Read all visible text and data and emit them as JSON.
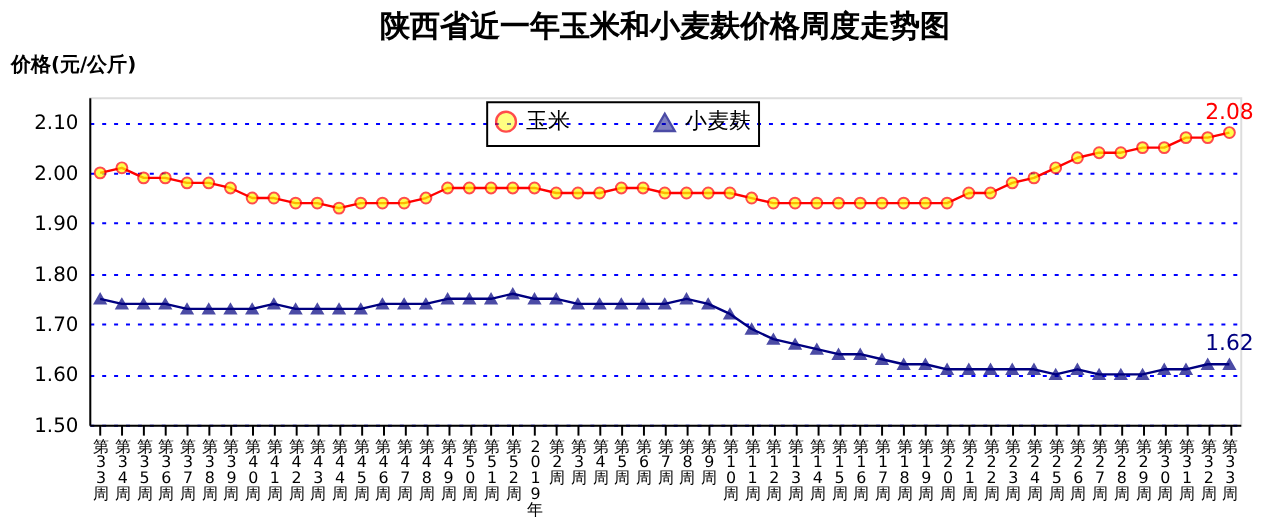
{
  "chart_data": {
    "type": "line",
    "title": "陕西省近一年玉米和小麦麸价格周度走势图",
    "ylabel": "价格(元/公斤)",
    "categories": [
      "第33周",
      "第34周",
      "第35周",
      "第36周",
      "第37周",
      "第38周",
      "第39周",
      "第40周",
      "第41周",
      "第42周",
      "第43周",
      "第44周",
      "第45周",
      "第46周",
      "第47周",
      "第48周",
      "第49周",
      "第50周",
      "第51周",
      "第52周",
      "2019年",
      "第2周",
      "第3周",
      "第4周",
      "第5周",
      "第6周",
      "第7周",
      "第8周",
      "第9周",
      "第10周",
      "第11周",
      "第12周",
      "第13周",
      "第14周",
      "第15周",
      "第16周",
      "第17周",
      "第18周",
      "第19周",
      "第20周",
      "第21周",
      "第22周",
      "第23周",
      "第24周",
      "第25周",
      "第26周",
      "第27周",
      "第28周",
      "第29周",
      "第30周",
      "第31周",
      "第32周",
      "第33周"
    ],
    "series": [
      {
        "name": "玉米",
        "color": "#ff0000",
        "marker": "circle",
        "values": [
          2.0,
          2.01,
          1.99,
          1.99,
          1.98,
          1.98,
          1.97,
          1.95,
          1.95,
          1.94,
          1.94,
          1.93,
          1.94,
          1.94,
          1.94,
          1.95,
          1.97,
          1.97,
          1.97,
          1.97,
          1.97,
          1.96,
          1.96,
          1.96,
          1.97,
          1.97,
          1.96,
          1.96,
          1.96,
          1.96,
          1.95,
          1.94,
          1.94,
          1.94,
          1.94,
          1.94,
          1.94,
          1.94,
          1.94,
          1.94,
          1.96,
          1.96,
          1.98,
          1.99,
          2.01,
          2.03,
          2.04,
          2.04,
          2.05,
          2.05,
          2.07,
          2.07,
          2.08
        ],
        "value_labels": [
          null,
          null,
          null,
          null,
          null,
          null,
          null,
          null,
          null,
          null,
          null,
          null,
          null,
          null,
          null,
          null,
          null,
          null,
          null,
          null,
          null,
          null,
          null,
          null,
          null,
          null,
          null,
          null,
          null,
          null,
          null,
          null,
          null,
          null,
          null,
          null,
          null,
          null,
          null,
          null,
          null,
          null,
          null,
          null,
          null,
          null,
          null,
          null,
          null,
          null,
          null,
          null,
          "2.08"
        ]
      },
      {
        "name": "小麦麸",
        "color": "#000080",
        "marker": "triangle",
        "values": [
          1.75,
          1.74,
          1.74,
          1.74,
          1.73,
          1.73,
          1.73,
          1.73,
          1.74,
          1.73,
          1.73,
          1.73,
          1.73,
          1.74,
          1.74,
          1.74,
          1.75,
          1.75,
          1.75,
          1.76,
          1.75,
          1.75,
          1.74,
          1.74,
          1.74,
          1.74,
          1.74,
          1.75,
          1.74,
          1.72,
          1.69,
          1.67,
          1.66,
          1.65,
          1.64,
          1.64,
          1.63,
          1.62,
          1.62,
          1.61,
          1.61,
          1.61,
          1.61,
          1.61,
          1.6,
          1.61,
          1.6,
          1.6,
          1.6,
          1.61,
          1.61,
          1.62,
          1.62
        ],
        "value_labels": [
          null,
          null,
          null,
          null,
          null,
          null,
          null,
          null,
          null,
          null,
          null,
          null,
          null,
          null,
          null,
          null,
          null,
          null,
          null,
          null,
          null,
          null,
          null,
          null,
          null,
          null,
          null,
          null,
          null,
          null,
          null,
          null,
          null,
          null,
          null,
          null,
          null,
          null,
          null,
          null,
          null,
          null,
          null,
          null,
          null,
          null,
          null,
          null,
          null,
          null,
          null,
          null,
          "1.62"
        ]
      }
    ],
    "ylim": [
      1.5,
      2.15
    ],
    "yticks": [
      {
        "value": 1.5,
        "label": "1.50"
      },
      {
        "value": 1.6,
        "label": "1.60"
      },
      {
        "value": 1.7,
        "label": "1.70"
      },
      {
        "value": 1.8,
        "label": "1.80"
      },
      {
        "value": 1.9,
        "label": "1.90"
      },
      {
        "value": 2.0,
        "label": "2.00"
      },
      {
        "value": 2.1,
        "label": "2.10"
      }
    ],
    "grid": "y",
    "legend": "top",
    "line_style": "solid"
  }
}
